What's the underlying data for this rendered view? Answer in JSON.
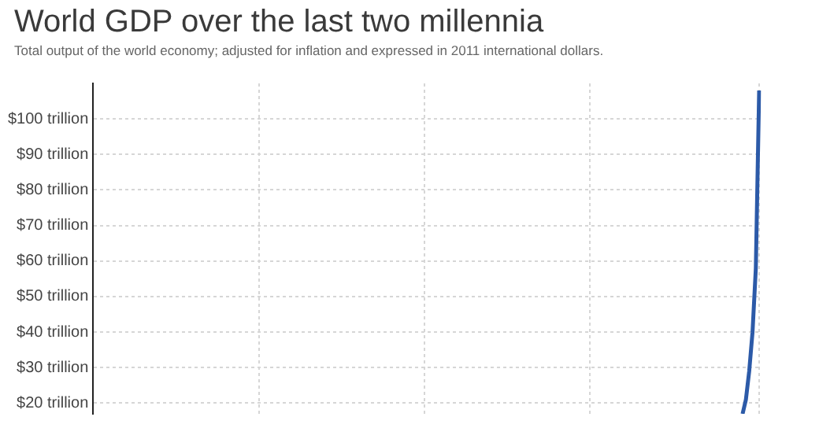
{
  "chart_data": {
    "type": "line",
    "title": "World GDP over the last two millennia",
    "subtitle": "Total output of the world economy; adjusted for inflation and expressed in 2011 international dollars.",
    "categories": [
      null,
      null,
      null,
      null,
      null,
      null,
      null,
      null,
      null,
      null,
      null,
      null,
      null,
      null,
      null,
      null,
      null,
      null,
      null,
      null,
      null,
      null,
      null,
      null,
      null,
      null,
      null,
      null,
      null,
      null,
      null,
      null,
      null,
      null,
      null,
      null,
      null,
      null,
      null,
      null,
      null,
      null,
      null,
      null,
      null,
      null,
      null,
      null,
      null,
      null,
      null,
      null,
      null,
      null,
      null,
      null,
      null,
      null,
      null,
      null,
      null,
      null,
      null,
      null,
      null,
      null,
      null,
      null,
      null,
      null,
      null,
      null,
      null,
      null,
      null,
      null,
      null,
      null,
      null,
      null,
      null,
      null,
      null,
      null,
      null,
      null,
      null,
      null,
      null,
      null,
      null,
      null,
      null,
      null,
      null,
      null,
      null,
      null,
      null,
      null,
      null,
      null,
      null,
      null,
      null,
      null,
      null,
      null,
      null,
      null,
      null,
      null,
      null,
      null,
      null,
      null,
      null,
      null,
      null,
      null,
      null,
      null,
      null,
      null,
      null,
      null,
      null,
      null,
      null,
      null,
      null,
      null,
      null,
      null,
      null,
      null,
      null,
      null,
      null,
      null,
      null,
      null,
      null,
      null,
      null,
      null,
      null,
      null,
      null,
      null,
      null,
      null,
      null,
      null,
      null,
      null,
      null,
      null,
      null,
      null,
      null,
      null,
      null,
      null,
      null,
      null,
      null,
      null,
      null,
      null,
      null,
      null,
      null,
      null,
      null,
      null,
      null,
      null,
      null,
      null,
      null,
      null,
      null,
      null,
      null,
      null,
      null,
      null,
      null,
      null,
      null,
      null,
      null,
      null,
      null,
      null,
      null,
      null,
      null,
      null,
      null,
      null
    ],
    "series": [
      {
        "color": "#2c5aa8",
        "values": [
          null,
          null,
          null,
          null,
          null,
          null,
          null,
          null,
          null,
          null,
          null,
          null,
          null,
          null,
          null,
          null,
          null,
          null,
          null,
          null,
          null,
          null,
          null,
          null,
          null,
          null,
          null,
          null,
          null,
          null,
          null,
          null,
          null,
          null,
          null,
          null,
          null,
          null,
          null,
          null,
          null,
          null,
          null,
          null,
          null,
          null,
          null,
          null,
          null,
          null,
          null,
          null,
          null,
          null,
          null,
          null,
          null,
          null,
          null,
          null,
          null,
          null,
          null,
          null,
          null,
          null,
          null,
          null,
          null,
          null,
          null,
          null,
          null,
          null,
          null,
          null,
          null,
          null,
          null,
          null,
          null,
          null,
          null,
          null,
          null,
          null,
          null,
          null,
          null,
          null,
          null,
          null,
          null,
          null,
          null,
          null,
          null,
          null,
          null,
          null,
          null,
          null,
          null,
          null,
          null,
          null,
          null,
          null,
          null,
          null,
          null,
          null,
          null,
          null,
          null,
          null,
          null,
          null,
          null,
          null,
          null,
          null,
          null,
          null,
          null,
          null,
          null,
          null,
          null,
          null,
          null,
          null,
          null,
          null,
          null,
          null,
          null,
          null,
          null,
          null,
          null,
          null,
          null,
          null,
          null,
          null,
          null,
          null,
          null,
          null,
          null,
          null,
          null,
          null,
          null,
          null,
          null,
          null,
          null,
          null,
          null,
          null,
          null,
          null,
          null,
          null,
          null,
          null,
          null,
          null,
          null,
          null,
          null,
          null,
          null,
          null,
          null,
          null,
          null,
          null,
          null,
          null,
          null,
          null,
          null,
          null,
          null,
          null,
          null,
          null,
          null,
          null,
          null,
          null,
          null,
          null,
          17,
          21,
          29,
          40,
          58,
          108
        ]
      }
    ],
    "ylim": [
      17,
      110
    ],
    "yticks": [
      {
        "value": 20,
        "label": "$20 trillion"
      },
      {
        "value": 30,
        "label": "$30 trillion"
      },
      {
        "value": 40,
        "label": "$40 trillion"
      },
      {
        "value": 50,
        "label": "$50 trillion"
      },
      {
        "value": 60,
        "label": "$60 trillion"
      },
      {
        "value": 70,
        "label": "$70 trillion"
      },
      {
        "value": 80,
        "label": "$80 trillion"
      },
      {
        "value": 90,
        "label": "$90 trillion"
      },
      {
        "value": 100,
        "label": "$100 trillion"
      }
    ],
    "tick_labels": "y",
    "grid": true,
    "legend": false,
    "marker": "none",
    "line_style": "solid"
  }
}
